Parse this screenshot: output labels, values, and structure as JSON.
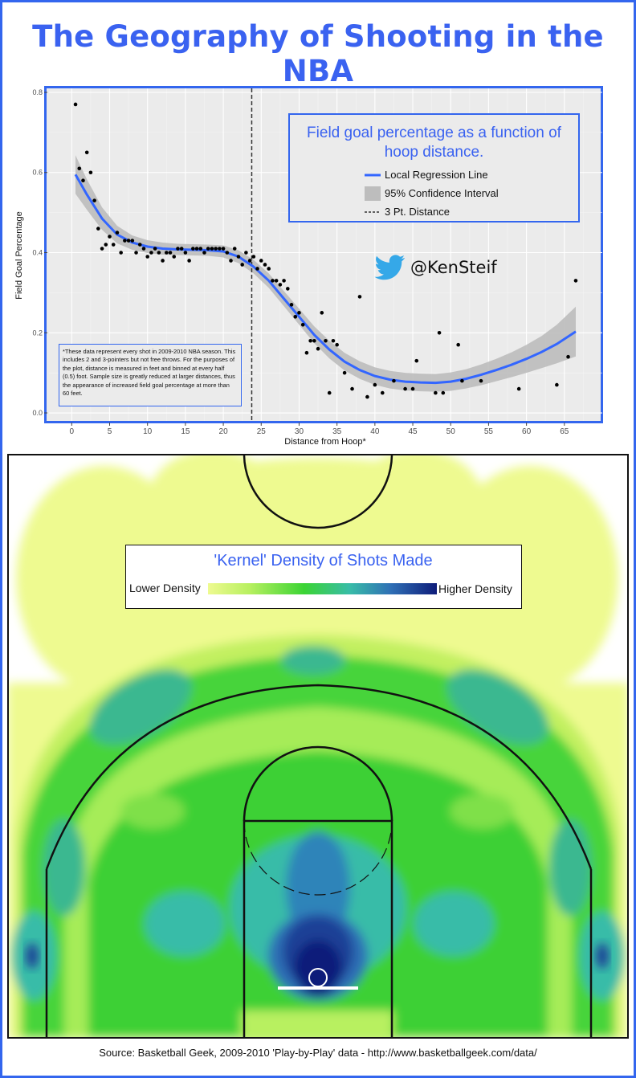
{
  "title": "The Geography of Shooting in the NBA",
  "scatter_panel": {
    "legend": {
      "title": "Field goal percentage as a function of hoop distance.",
      "items": [
        {
          "label": "Local Regression Line",
          "key": "line",
          "color": "#3366ff"
        },
        {
          "label": "95% Confidence Interval",
          "key": "ribbon",
          "color": "#bdbdbd"
        },
        {
          "label": "3 Pt. Distance",
          "key": "dashed",
          "color": "#333333"
        }
      ]
    },
    "twitter_handle": "@KenSteif",
    "footnote": "*These data represent every shot in 2009-2010 NBA season. This includes 2 and 3-pointers but not free throws. For the purposes of the plot, distance is measured in feet and binned at every half (0.5) foot.  Sample size is greatly reduced at larger distances, thus the appearance of increased field goal percentage at more than 60 feet."
  },
  "chart_data": {
    "type": "scatter",
    "xlabel": "Distance from Hoop*",
    "ylabel": "Field Goal Percentage",
    "xlim": [
      -3,
      70
    ],
    "ylim": [
      -0.02,
      0.81
    ],
    "xticks": [
      0,
      5,
      10,
      15,
      20,
      25,
      30,
      35,
      40,
      45,
      50,
      55,
      60,
      65
    ],
    "yticks": [
      0.0,
      0.2,
      0.4,
      0.6,
      0.8
    ],
    "ytick_labels": [
      "0.0",
      "0.2",
      "0.4",
      "0.6",
      "0.8"
    ],
    "grid": true,
    "three_point_distance": 23.75,
    "points": [
      [
        0.5,
        0.77
      ],
      [
        1.0,
        0.61
      ],
      [
        1.5,
        0.58
      ],
      [
        2.0,
        0.65
      ],
      [
        2.5,
        0.6
      ],
      [
        3.0,
        0.53
      ],
      [
        3.5,
        0.46
      ],
      [
        4.0,
        0.41
      ],
      [
        4.5,
        0.42
      ],
      [
        5.0,
        0.44
      ],
      [
        5.5,
        0.42
      ],
      [
        6.0,
        0.45
      ],
      [
        6.5,
        0.4
      ],
      [
        7.0,
        0.43
      ],
      [
        7.5,
        0.43
      ],
      [
        8.0,
        0.43
      ],
      [
        8.5,
        0.4
      ],
      [
        9.0,
        0.42
      ],
      [
        9.5,
        0.41
      ],
      [
        10.0,
        0.39
      ],
      [
        10.5,
        0.4
      ],
      [
        11.0,
        0.41
      ],
      [
        11.5,
        0.4
      ],
      [
        12.0,
        0.38
      ],
      [
        12.5,
        0.4
      ],
      [
        13.0,
        0.4
      ],
      [
        13.5,
        0.39
      ],
      [
        14.0,
        0.41
      ],
      [
        14.5,
        0.41
      ],
      [
        15.0,
        0.4
      ],
      [
        15.5,
        0.38
      ],
      [
        16.0,
        0.41
      ],
      [
        16.5,
        0.41
      ],
      [
        17.0,
        0.41
      ],
      [
        17.5,
        0.4
      ],
      [
        18.0,
        0.41
      ],
      [
        18.5,
        0.41
      ],
      [
        19.0,
        0.41
      ],
      [
        19.5,
        0.41
      ],
      [
        20.0,
        0.41
      ],
      [
        20.5,
        0.4
      ],
      [
        21.0,
        0.38
      ],
      [
        21.5,
        0.41
      ],
      [
        22.0,
        0.39
      ],
      [
        22.5,
        0.37
      ],
      [
        23.0,
        0.4
      ],
      [
        23.5,
        0.38
      ],
      [
        24.0,
        0.39
      ],
      [
        24.5,
        0.36
      ],
      [
        25.0,
        0.38
      ],
      [
        25.5,
        0.37
      ],
      [
        26.0,
        0.36
      ],
      [
        26.5,
        0.33
      ],
      [
        27.0,
        0.33
      ],
      [
        27.5,
        0.32
      ],
      [
        28.0,
        0.33
      ],
      [
        28.5,
        0.31
      ],
      [
        29.0,
        0.27
      ],
      [
        29.5,
        0.24
      ],
      [
        30.0,
        0.25
      ],
      [
        30.5,
        0.22
      ],
      [
        31.0,
        0.15
      ],
      [
        31.5,
        0.18
      ],
      [
        32.0,
        0.18
      ],
      [
        32.5,
        0.16
      ],
      [
        33.0,
        0.25
      ],
      [
        33.5,
        0.18
      ],
      [
        34.0,
        0.05
      ],
      [
        34.5,
        0.18
      ],
      [
        35.0,
        0.17
      ],
      [
        36.0,
        0.1
      ],
      [
        37.0,
        0.06
      ],
      [
        38.0,
        0.29
      ],
      [
        39.0,
        0.04
      ],
      [
        40.0,
        0.07
      ],
      [
        41.0,
        0.05
      ],
      [
        42.5,
        0.08
      ],
      [
        44.0,
        0.06
      ],
      [
        45.0,
        0.06
      ],
      [
        45.5,
        0.13
      ],
      [
        48.0,
        0.05
      ],
      [
        48.5,
        0.2
      ],
      [
        49.0,
        0.05
      ],
      [
        51.0,
        0.17
      ],
      [
        51.5,
        0.08
      ],
      [
        54.0,
        0.08
      ],
      [
        59.0,
        0.06
      ],
      [
        64.0,
        0.07
      ],
      [
        65.5,
        0.14
      ],
      [
        66.5,
        0.33
      ]
    ],
    "regression": [
      [
        0.5,
        0.595
      ],
      [
        2.0,
        0.545
      ],
      [
        4.0,
        0.485
      ],
      [
        6.0,
        0.445
      ],
      [
        8.0,
        0.425
      ],
      [
        10.0,
        0.415
      ],
      [
        12.0,
        0.41
      ],
      [
        14.0,
        0.408
      ],
      [
        16.0,
        0.407
      ],
      [
        18.0,
        0.406
      ],
      [
        20.0,
        0.403
      ],
      [
        22.0,
        0.39
      ],
      [
        24.0,
        0.365
      ],
      [
        26.0,
        0.33
      ],
      [
        28.0,
        0.285
      ],
      [
        30.0,
        0.24
      ],
      [
        32.0,
        0.195
      ],
      [
        34.0,
        0.158
      ],
      [
        36.0,
        0.128
      ],
      [
        38.0,
        0.107
      ],
      [
        40.0,
        0.092
      ],
      [
        42.0,
        0.083
      ],
      [
        44.0,
        0.078
      ],
      [
        46.0,
        0.076
      ],
      [
        48.0,
        0.075
      ],
      [
        50.0,
        0.078
      ],
      [
        52.0,
        0.085
      ],
      [
        54.0,
        0.095
      ],
      [
        56.0,
        0.107
      ],
      [
        58.0,
        0.12
      ],
      [
        60.0,
        0.135
      ],
      [
        62.0,
        0.152
      ],
      [
        64.0,
        0.172
      ],
      [
        66.5,
        0.203
      ]
    ],
    "ci_halfwidth": [
      0.048,
      0.038,
      0.028,
      0.022,
      0.018,
      0.016,
      0.015,
      0.014,
      0.014,
      0.014,
      0.015,
      0.016,
      0.017,
      0.018,
      0.019,
      0.02,
      0.021,
      0.022,
      0.022,
      0.022,
      0.022,
      0.022,
      0.022,
      0.022,
      0.022,
      0.023,
      0.024,
      0.026,
      0.028,
      0.031,
      0.035,
      0.04,
      0.048,
      0.062
    ]
  },
  "density_map": {
    "legend_title": "'Kernel' Density of Shots Made",
    "low_label": "Lower Density",
    "high_label": "Higher Density",
    "colors": [
      "#eefa90",
      "#b8f060",
      "#3bd434",
      "#38bca8",
      "#2f6fb5",
      "#0e1d7a"
    ]
  },
  "source": "Source: Basketball Geek, 2009-2010 'Play-by-Play' data - http://www.basketballgeek.com/data/"
}
